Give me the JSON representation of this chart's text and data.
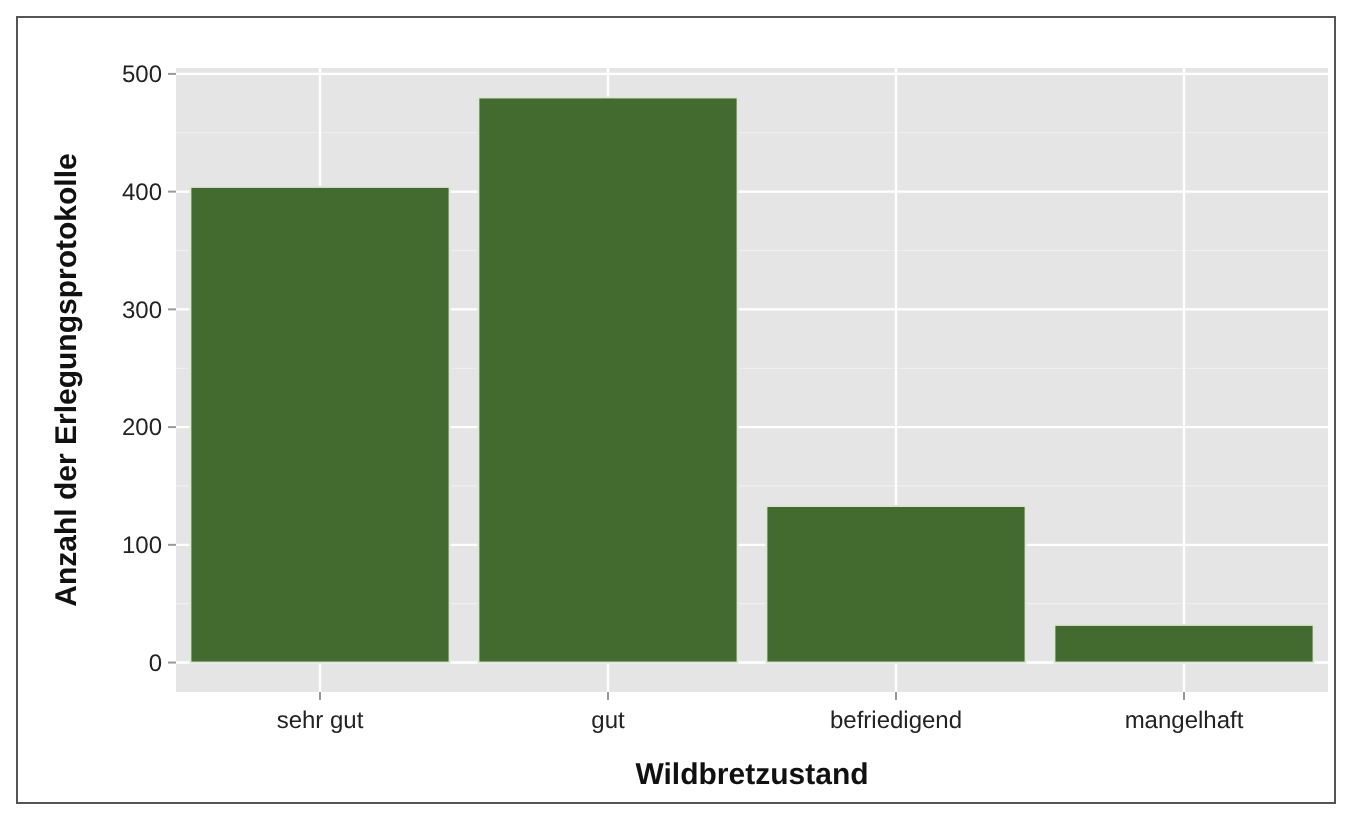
{
  "chart_data": {
    "type": "bar",
    "xlabel": "Wildbretzustand",
    "ylabel": "Anzahl der Erlegungsprotokolle",
    "categories": [
      "sehr gut",
      "gut",
      "befriedigend",
      "mangelhaft"
    ],
    "values": [
      404,
      480,
      133,
      32
    ],
    "color": "#436b30",
    "ylim": [
      -25,
      505
    ],
    "yticks": [
      0,
      100,
      200,
      300,
      400,
      500
    ],
    "grid": true
  }
}
